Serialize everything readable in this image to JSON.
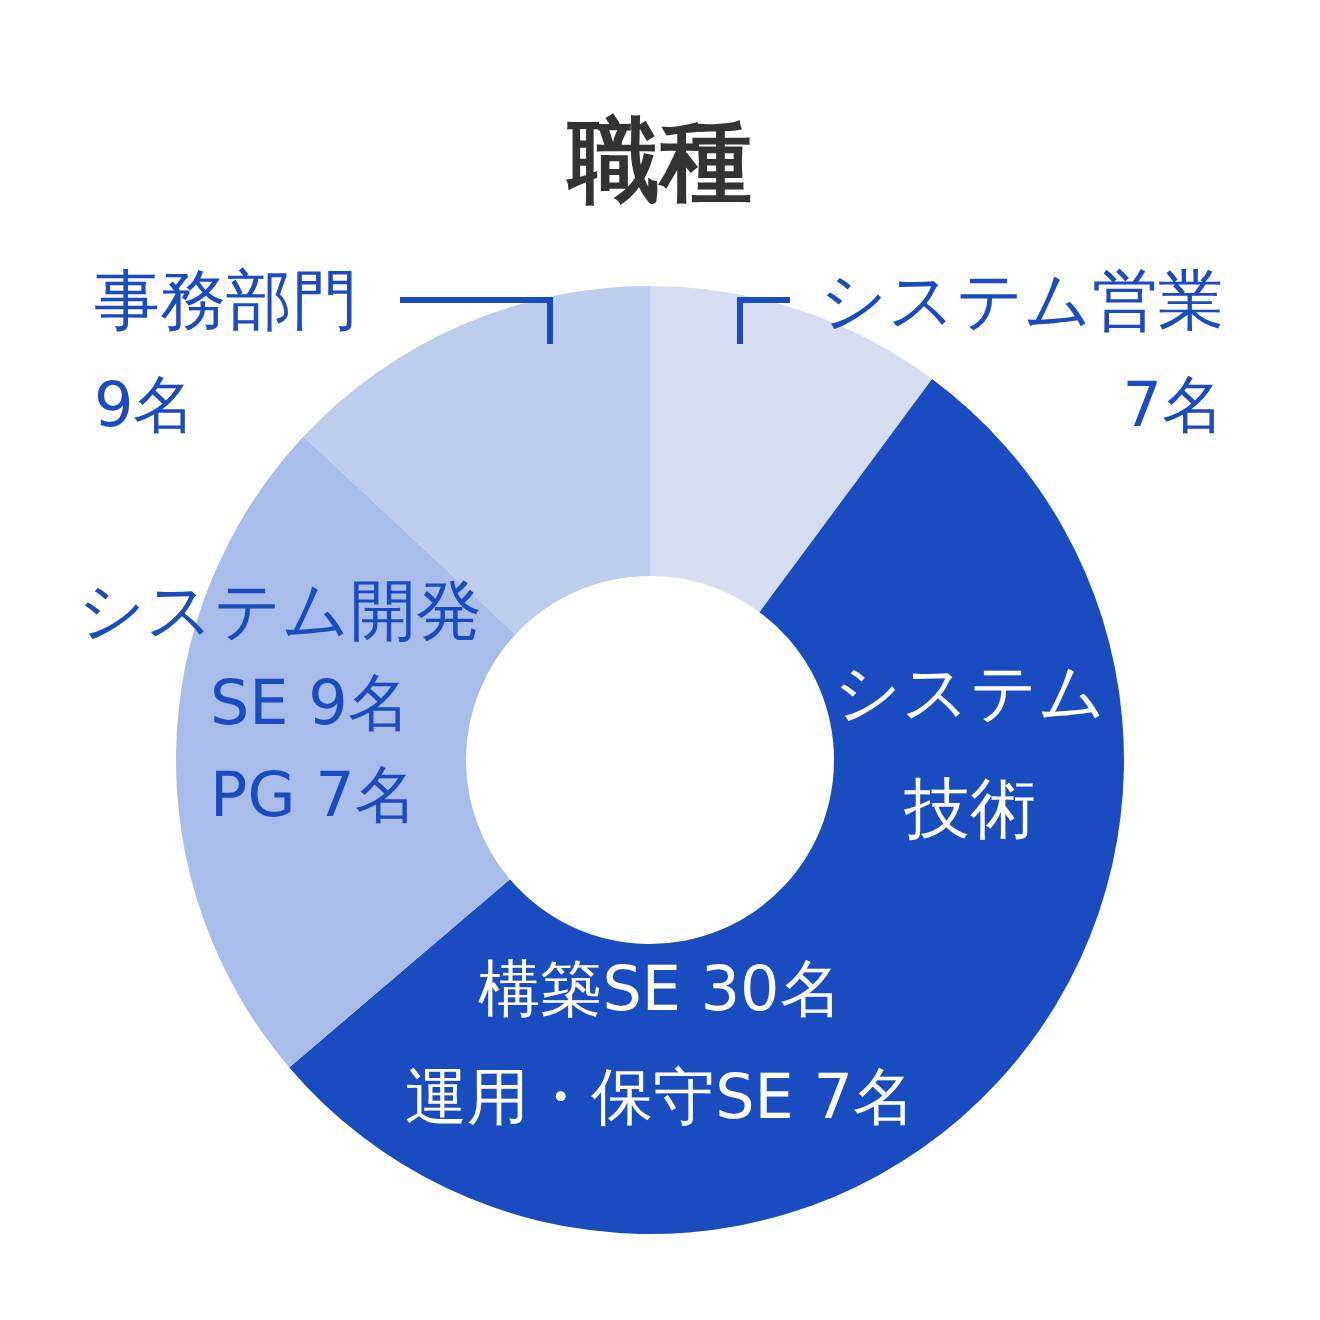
{
  "chart_data": {
    "type": "donut",
    "title": "職種",
    "categories": [
      "システム営業",
      "システム技術",
      "システム開発",
      "事務部門"
    ],
    "values": [
      7,
      37,
      16,
      9
    ],
    "colors": [
      "#d6ddf1",
      "#194cbf",
      "#a8bdea",
      "#bccdee"
    ],
    "value_labels": [
      "7名",
      null,
      null,
      "9名"
    ],
    "annotations": [
      "構築SE 30名",
      "運用・保守SE 7名",
      "SE 9名",
      "PG 7名"
    ],
    "legend": false
  }
}
